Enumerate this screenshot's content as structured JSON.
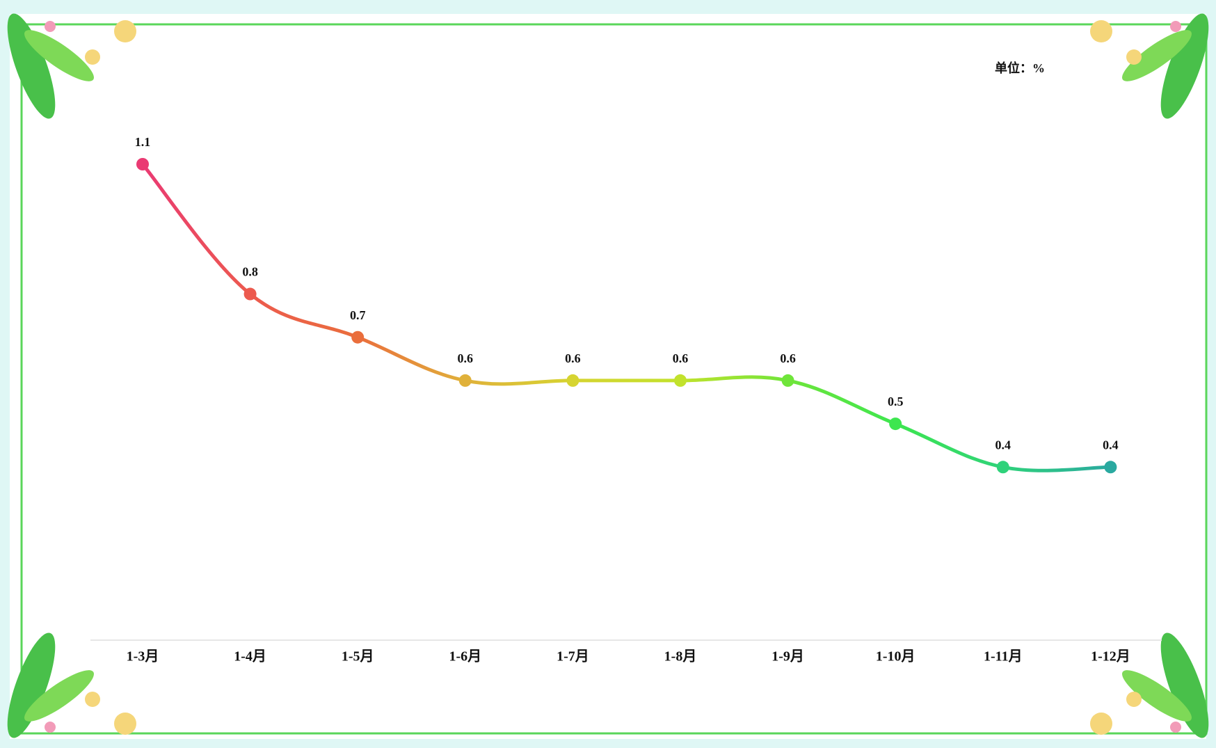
{
  "chart_data": {
    "type": "line",
    "unit_label": "单位：%",
    "categories": [
      "1-3月",
      "1-4月",
      "1-5月",
      "1-6月",
      "1-7月",
      "1-8月",
      "1-9月",
      "1-10月",
      "1-11月",
      "1-12月"
    ],
    "values": [
      1.1,
      0.8,
      0.7,
      0.6,
      0.6,
      0.6,
      0.6,
      0.5,
      0.4,
      0.4
    ],
    "colors": [
      "#ea3a73",
      "#ec5a4e",
      "#ea6e3c",
      "#e0b13a",
      "#d6d431",
      "#c2e22c",
      "#6fe53a",
      "#3de64f",
      "#2fd27a",
      "#2aa9a0"
    ]
  }
}
